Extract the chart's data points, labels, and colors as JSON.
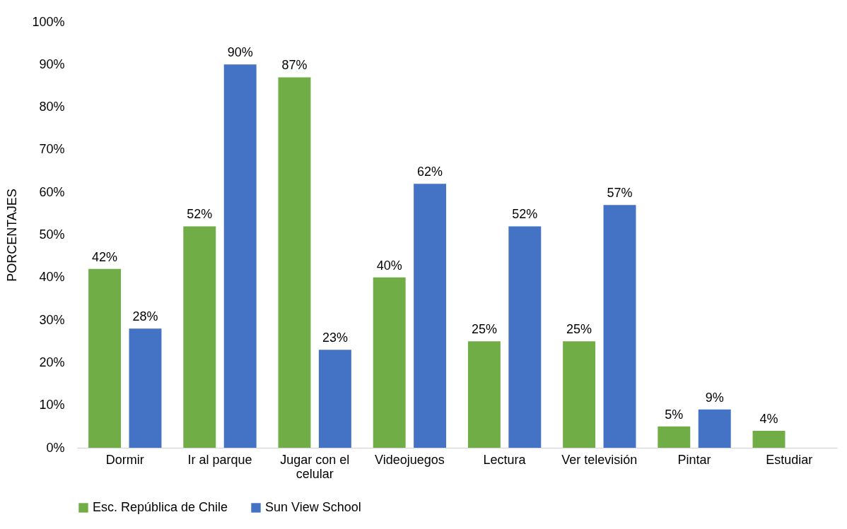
{
  "chart_data": {
    "type": "bar",
    "ylabel": "PORCENTAJES",
    "categories": [
      "Dormir",
      "Ir al parque",
      "Jugar con el celular",
      "Videojuegos",
      "Lectura",
      "Ver televisión",
      "Pintar",
      "Estudiar"
    ],
    "series": [
      {
        "name": "Esc. República de Chile",
        "color": "#70ad47",
        "values": [
          42,
          52,
          87,
          40,
          25,
          25,
          5,
          4
        ],
        "value_labels": [
          "42%",
          "52%",
          "87%",
          "40%",
          "25%",
          "25%",
          "5%",
          "4%"
        ]
      },
      {
        "name": "Sun View School",
        "color": "#4472c4",
        "values": [
          28,
          90,
          23,
          62,
          52,
          57,
          9,
          null
        ],
        "value_labels": [
          "28%",
          "90%",
          "23%",
          "62%",
          "52%",
          "57%",
          "9%",
          null
        ]
      }
    ],
    "ylim": [
      0,
      100
    ],
    "yticks": [
      {
        "value": 0,
        "label": "0%"
      },
      {
        "value": 10,
        "label": "10%"
      },
      {
        "value": 20,
        "label": "20%"
      },
      {
        "value": 30,
        "label": "30%"
      },
      {
        "value": 40,
        "label": "40%"
      },
      {
        "value": 50,
        "label": "50%"
      },
      {
        "value": 60,
        "label": "60%"
      },
      {
        "value": 70,
        "label": "70%"
      },
      {
        "value": 80,
        "label": "80%"
      },
      {
        "value": 90,
        "label": "90%"
      },
      {
        "value": 100,
        "label": "100%"
      }
    ],
    "grid": false,
    "legend": "bottom"
  }
}
